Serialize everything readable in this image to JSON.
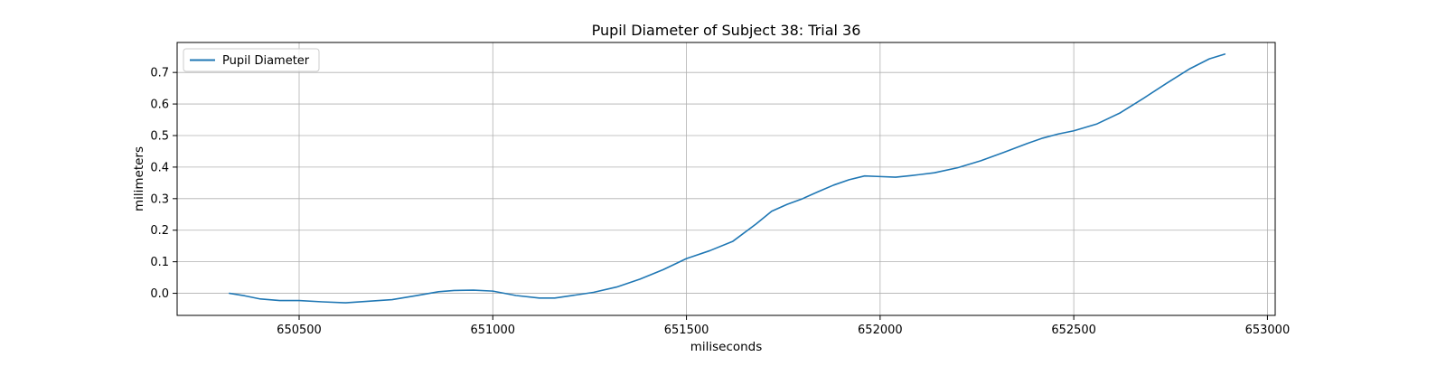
{
  "chart_data": {
    "type": "line",
    "title": "Pupil Diameter of Subject 38: Trial 36",
    "xlabel": "miliseconds",
    "ylabel": "milimeters",
    "xlim": [
      650185,
      653020
    ],
    "ylim": [
      -0.07,
      0.795
    ],
    "xticks": [
      650500,
      651000,
      651500,
      652000,
      652500,
      653000
    ],
    "yticks": [
      0.0,
      0.1,
      0.2,
      0.3,
      0.4,
      0.5,
      0.6,
      0.7
    ],
    "ytick_labels": [
      "0.0",
      "0.1",
      "0.2",
      "0.3",
      "0.4",
      "0.5",
      "0.6",
      "0.7"
    ],
    "grid": true,
    "legend_position": "upper-left",
    "series": [
      {
        "name": "Pupil Diameter",
        "color": "#1f77b4",
        "x": [
          650320,
          650360,
          650400,
          650450,
          650500,
          650560,
          650620,
          650680,
          650740,
          650800,
          650860,
          650900,
          650950,
          651000,
          651060,
          651120,
          651160,
          651200,
          651260,
          651320,
          651380,
          651440,
          651500,
          651560,
          651620,
          651680,
          651720,
          651760,
          651800,
          651840,
          651880,
          651920,
          651960,
          652000,
          652040,
          652080,
          652140,
          652200,
          652260,
          652320,
          652380,
          652420,
          652460,
          652500,
          652560,
          652620,
          652680,
          652740,
          652800,
          652850,
          652890
        ],
        "y": [
          0.0,
          -0.008,
          -0.018,
          -0.023,
          -0.023,
          -0.027,
          -0.03,
          -0.025,
          -0.02,
          -0.008,
          0.005,
          0.009,
          0.01,
          0.007,
          -0.007,
          -0.015,
          -0.015,
          -0.008,
          0.003,
          0.02,
          0.045,
          0.075,
          0.11,
          0.135,
          0.165,
          0.22,
          0.26,
          0.282,
          0.3,
          0.322,
          0.343,
          0.36,
          0.372,
          0.37,
          0.368,
          0.373,
          0.382,
          0.398,
          0.42,
          0.447,
          0.475,
          0.492,
          0.505,
          0.515,
          0.537,
          0.572,
          0.618,
          0.666,
          0.712,
          0.743,
          0.758
        ]
      }
    ]
  }
}
